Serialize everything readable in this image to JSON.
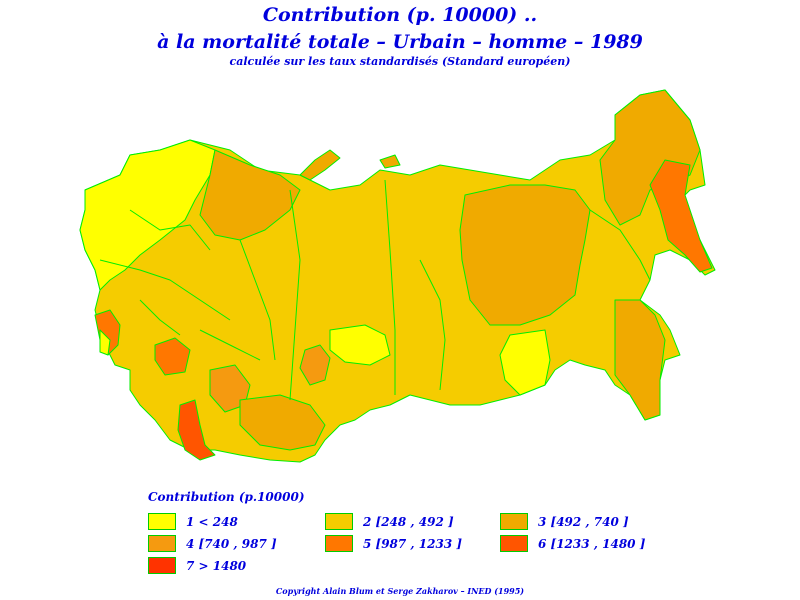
{
  "title": {
    "line1": "Contribution  (p. 10000) ..",
    "line2": "à  la  mortalité  totale  –  Urbain  –  homme  –  1989",
    "line3": "calculée sur les taux standardisés (Standard européen)"
  },
  "legend": {
    "title": "Contribution  (p.10000)",
    "items": [
      {
        "label": "1  <  248",
        "color": "#ffff00"
      },
      {
        "label": "2 [248 ,  492 ]",
        "color": "#f5cc00"
      },
      {
        "label": "3 [492 ,  740 ]",
        "color": "#f0aa00"
      },
      {
        "label": "4 [740 ,  987 ]",
        "color": "#f59a10"
      },
      {
        "label": "5 [987 ,  1233 ]",
        "color": "#ff7700"
      },
      {
        "label": "6 [1233 ,  1480 ]",
        "color": "#ff5500"
      },
      {
        "label": "7  >  1480",
        "color": "#ff3300"
      }
    ]
  },
  "colors": {
    "border": "#00ee00",
    "text": "#0000dd"
  },
  "copyright": "Copyright Alain Blum et Serge Zakharov  –  INED (1995)"
}
